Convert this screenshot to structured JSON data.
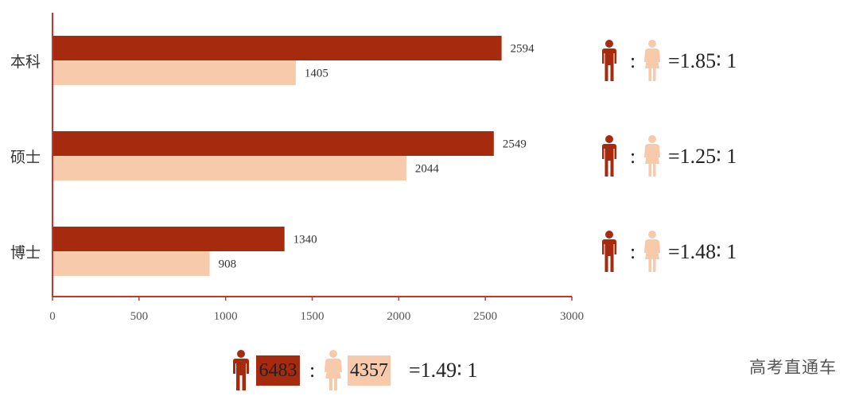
{
  "chart_data": {
    "type": "bar",
    "orientation": "horizontal",
    "categories": [
      "本科",
      "硕士",
      "博士"
    ],
    "series": [
      {
        "values": [
          2594,
          2549,
          1340
        ]
      },
      {
        "values": [
          1405,
          2044,
          908
        ]
      }
    ],
    "xlim": [
      0,
      3000
    ],
    "xticks": [
      0,
      500,
      1000,
      1500,
      2000,
      2500,
      3000
    ],
    "grid": false,
    "ratios": [
      {
        "sep": ":",
        "text": "=1.85∶ 1"
      },
      {
        "sep": ":",
        "text": "=1.25∶ 1"
      },
      {
        "sep": ":",
        "text": "=1.48∶ 1"
      }
    ]
  },
  "colors": {
    "male": "#A52A0E",
    "female": "#F7CAAC",
    "axis": "#C0392B"
  },
  "icons": {
    "male": "male-person-icon",
    "female": "female-person-icon"
  },
  "totals": {
    "male": "6483",
    "sep": ":",
    "female": "4357",
    "ratio": "=1.49∶ 1"
  },
  "watermark": "高考直通车"
}
